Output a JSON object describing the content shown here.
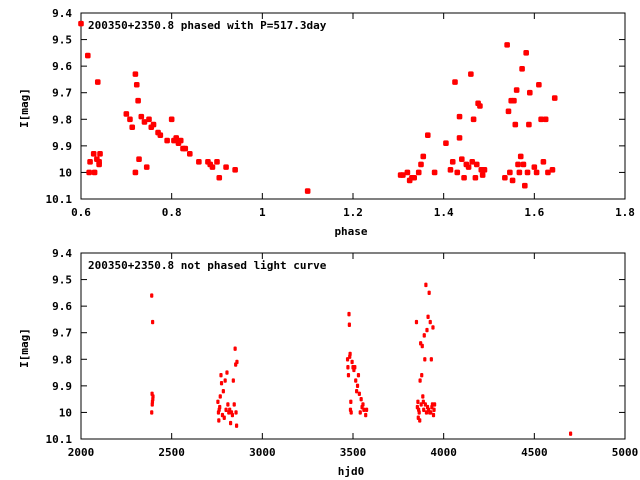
{
  "chart_data": [
    {
      "type": "scatter",
      "title": "200350+2350.8 phased with P=517.3day",
      "xlabel": "phase",
      "ylabel": "I[mag]",
      "xlim": [
        0.6,
        1.8
      ],
      "ylim": [
        9.4,
        10.1
      ],
      "y_inverted": true,
      "grid": false,
      "marker_color": "#ff0000",
      "x_ticks": [
        "0.6",
        "0.8",
        "1",
        "1.2",
        "1.4",
        "1.6",
        "1.8"
      ],
      "y_ticks": [
        "9.4",
        "9.5",
        "9.6",
        "9.7",
        "9.8",
        "9.9",
        "10",
        "10.1"
      ],
      "points": [
        [
          0.6,
          9.44
        ],
        [
          0.615,
          9.56
        ],
        [
          0.62,
          9.96
        ],
        [
          0.618,
          10.0
        ],
        [
          0.628,
          9.93
        ],
        [
          0.63,
          10.0
        ],
        [
          0.635,
          9.95
        ],
        [
          0.637,
          9.66
        ],
        [
          0.64,
          9.97
        ],
        [
          0.642,
          9.93
        ],
        [
          0.64,
          9.96
        ],
        [
          0.7,
          9.78
        ],
        [
          0.708,
          9.8
        ],
        [
          0.713,
          9.83
        ],
        [
          0.72,
          9.63
        ],
        [
          0.723,
          9.67
        ],
        [
          0.726,
          9.73
        ],
        [
          0.72,
          10.0
        ],
        [
          0.728,
          9.95
        ],
        [
          0.733,
          9.79
        ],
        [
          0.74,
          9.81
        ],
        [
          0.745,
          9.98
        ],
        [
          0.75,
          9.8
        ],
        [
          0.755,
          9.83
        ],
        [
          0.76,
          9.82
        ],
        [
          0.77,
          9.85
        ],
        [
          0.775,
          9.86
        ],
        [
          0.79,
          9.88
        ],
        [
          0.8,
          9.8
        ],
        [
          0.805,
          9.88
        ],
        [
          0.81,
          9.87
        ],
        [
          0.815,
          9.89
        ],
        [
          0.82,
          9.88
        ],
        [
          0.825,
          9.91
        ],
        [
          0.83,
          9.91
        ],
        [
          0.84,
          9.93
        ],
        [
          0.86,
          9.96
        ],
        [
          0.88,
          9.96
        ],
        [
          0.885,
          9.97
        ],
        [
          0.89,
          9.98
        ],
        [
          0.9,
          9.96
        ],
        [
          0.905,
          10.02
        ],
        [
          0.92,
          9.98
        ],
        [
          0.94,
          9.99
        ],
        [
          1.1,
          10.07
        ],
        [
          1.305,
          10.01
        ],
        [
          1.31,
          10.01
        ],
        [
          1.32,
          10.0
        ],
        [
          1.325,
          10.03
        ],
        [
          1.33,
          10.02
        ],
        [
          1.335,
          10.02
        ],
        [
          1.345,
          10.0
        ],
        [
          1.35,
          9.97
        ],
        [
          1.355,
          9.94
        ],
        [
          1.365,
          9.86
        ],
        [
          1.38,
          10.0
        ],
        [
          1.405,
          9.89
        ],
        [
          1.415,
          9.99
        ],
        [
          1.42,
          9.96
        ],
        [
          1.425,
          9.66
        ],
        [
          1.43,
          10.0
        ],
        [
          1.435,
          9.79
        ],
        [
          1.435,
          9.87
        ],
        [
          1.44,
          9.95
        ],
        [
          1.445,
          10.02
        ],
        [
          1.45,
          9.97
        ],
        [
          1.455,
          9.98
        ],
        [
          1.46,
          9.63
        ],
        [
          1.463,
          9.96
        ],
        [
          1.466,
          9.8
        ],
        [
          1.47,
          10.02
        ],
        [
          1.473,
          9.97
        ],
        [
          1.476,
          9.74
        ],
        [
          1.48,
          9.75
        ],
        [
          1.483,
          9.99
        ],
        [
          1.486,
          10.01
        ],
        [
          1.49,
          9.99
        ],
        [
          1.535,
          10.02
        ],
        [
          1.54,
          9.52
        ],
        [
          1.543,
          9.77
        ],
        [
          1.546,
          10.0
        ],
        [
          1.549,
          9.73
        ],
        [
          1.552,
          10.03
        ],
        [
          1.555,
          9.73
        ],
        [
          1.558,
          9.82
        ],
        [
          1.561,
          9.69
        ],
        [
          1.564,
          9.97
        ],
        [
          1.567,
          10.0
        ],
        [
          1.57,
          9.94
        ],
        [
          1.573,
          9.61
        ],
        [
          1.576,
          9.97
        ],
        [
          1.579,
          10.05
        ],
        [
          1.582,
          9.55
        ],
        [
          1.585,
          10.0
        ],
        [
          1.588,
          9.82
        ],
        [
          1.59,
          9.7
        ],
        [
          1.6,
          9.98
        ],
        [
          1.605,
          10.0
        ],
        [
          1.61,
          9.67
        ],
        [
          1.615,
          9.8
        ],
        [
          1.62,
          9.96
        ],
        [
          1.625,
          9.8
        ],
        [
          1.63,
          10.0
        ],
        [
          1.64,
          9.99
        ],
        [
          1.645,
          9.72
        ]
      ]
    },
    {
      "type": "scatter",
      "title": "200350+2350.8 not phased light curve",
      "xlabel": "hjd0",
      "ylabel": "I[mag]",
      "xlim": [
        2000,
        5000
      ],
      "ylim": [
        9.4,
        10.1
      ],
      "y_inverted": true,
      "grid": false,
      "marker_color": "#ff0000",
      "x_ticks": [
        "2000",
        "2500",
        "3000",
        "3500",
        "4000",
        "4500",
        "5000"
      ],
      "y_ticks": [
        "9.4",
        "9.5",
        "9.6",
        "9.7",
        "9.8",
        "9.9",
        "10",
        "10.1"
      ],
      "points": [
        [
          2390,
          9.56
        ],
        [
          2395,
          9.66
        ],
        [
          2392,
          9.93
        ],
        [
          2394,
          9.96
        ],
        [
          2396,
          9.95
        ],
        [
          2393,
          9.97
        ],
        [
          2390,
          10.0
        ],
        [
          2397,
          9.94
        ],
        [
          2755,
          9.96
        ],
        [
          2758,
          10.0
        ],
        [
          2760,
          10.03
        ],
        [
          2762,
          9.99
        ],
        [
          2765,
          9.98
        ],
        [
          2768,
          9.94
        ],
        [
          2772,
          9.86
        ],
        [
          2775,
          9.89
        ],
        [
          2780,
          10.01
        ],
        [
          2785,
          9.92
        ],
        [
          2790,
          10.02
        ],
        [
          2795,
          9.88
        ],
        [
          2800,
          9.99
        ],
        [
          2805,
          9.85
        ],
        [
          2810,
          9.97
        ],
        [
          2815,
          10.0
        ],
        [
          2820,
          9.99
        ],
        [
          2825,
          10.04
        ],
        [
          2830,
          10.0
        ],
        [
          2835,
          10.01
        ],
        [
          2840,
          9.88
        ],
        [
          2845,
          9.97
        ],
        [
          2850,
          9.76
        ],
        [
          2853,
          9.82
        ],
        [
          2855,
          10.0
        ],
        [
          2858,
          10.05
        ],
        [
          2860,
          9.81
        ],
        [
          3470,
          9.8
        ],
        [
          3472,
          9.83
        ],
        [
          3475,
          9.86
        ],
        [
          3478,
          9.63
        ],
        [
          3480,
          9.67
        ],
        [
          3482,
          9.79
        ],
        [
          3484,
          9.78
        ],
        [
          3486,
          9.99
        ],
        [
          3488,
          9.96
        ],
        [
          3490,
          10.0
        ],
        [
          3495,
          9.81
        ],
        [
          3500,
          9.83
        ],
        [
          3505,
          9.84
        ],
        [
          3510,
          9.83
        ],
        [
          3515,
          9.88
        ],
        [
          3520,
          9.92
        ],
        [
          3525,
          9.9
        ],
        [
          3530,
          9.86
        ],
        [
          3535,
          9.93
        ],
        [
          3540,
          10.0
        ],
        [
          3545,
          9.95
        ],
        [
          3550,
          9.98
        ],
        [
          3555,
          9.97
        ],
        [
          3560,
          9.99
        ],
        [
          3570,
          10.01
        ],
        [
          3575,
          9.99
        ],
        [
          3850,
          9.66
        ],
        [
          3855,
          9.98
        ],
        [
          3858,
          9.96
        ],
        [
          3860,
          10.02
        ],
        [
          3862,
          9.99
        ],
        [
          3865,
          10.0
        ],
        [
          3868,
          10.03
        ],
        [
          3870,
          9.88
        ],
        [
          3873,
          9.74
        ],
        [
          3876,
          9.97
        ],
        [
          3879,
          9.86
        ],
        [
          3882,
          9.75
        ],
        [
          3885,
          9.94
        ],
        [
          3888,
          9.96
        ],
        [
          3890,
          9.99
        ],
        [
          3893,
          9.71
        ],
        [
          3896,
          9.8
        ],
        [
          3899,
          9.97
        ],
        [
          3902,
          9.52
        ],
        [
          3905,
          10.0
        ],
        [
          3908,
          9.69
        ],
        [
          3911,
          9.98
        ],
        [
          3914,
          9.64
        ],
        [
          3917,
          9.99
        ],
        [
          3920,
          9.55
        ],
        [
          3923,
          10.0
        ],
        [
          3926,
          9.66
        ],
        [
          3929,
          10.0
        ],
        [
          3932,
          9.8
        ],
        [
          3935,
          9.98
        ],
        [
          3938,
          9.97
        ],
        [
          3941,
          9.68
        ],
        [
          3944,
          10.01
        ],
        [
          3947,
          9.99
        ],
        [
          3950,
          9.97
        ],
        [
          4700,
          10.08
        ]
      ]
    }
  ]
}
